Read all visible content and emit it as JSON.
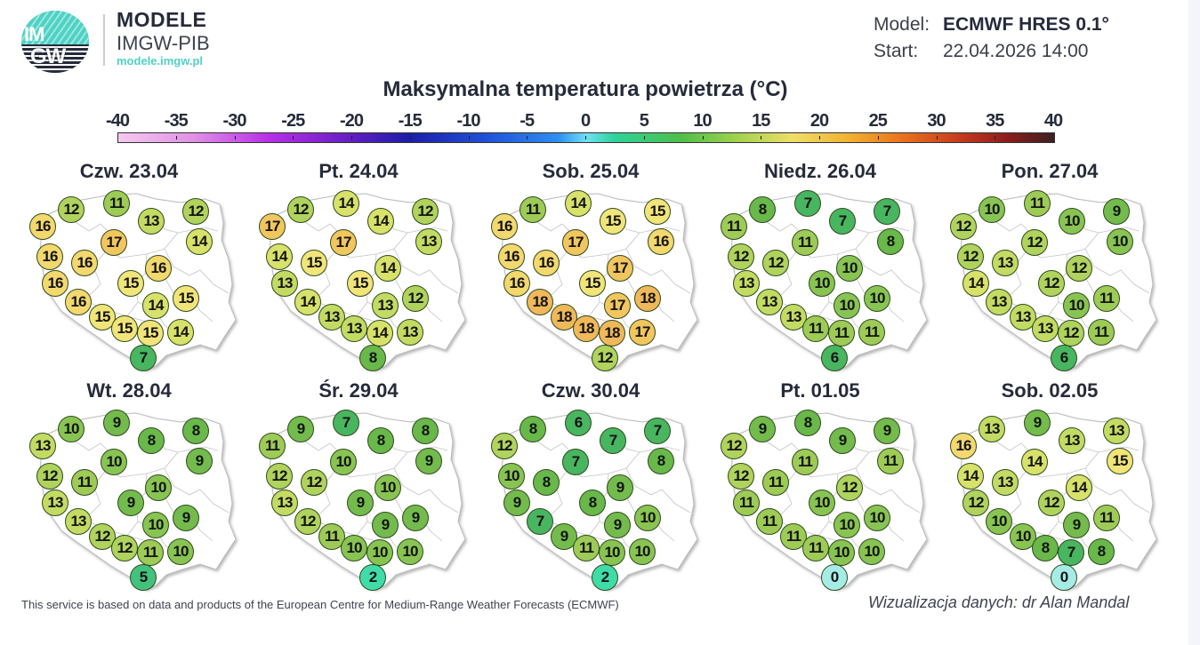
{
  "header": {
    "logo": {
      "line1": "IM",
      "line2": "GW"
    },
    "brand_title": "MODELE",
    "brand_subtitle": "IMGW-PIB",
    "brand_url": "modele.imgw.pl",
    "model_label": "Model:",
    "model_value": "ECMWF HRES 0.1°",
    "start_label": "Start:",
    "start_value": "22.04.2026 14:00"
  },
  "colors": {
    "brand_teal": "#4fd1c5",
    "brand_dark": "#252b3a"
  },
  "footer": {
    "source": "This service is based on data and products of the European Centre for Medium-Range Weather Forecasts (ECMWF)",
    "credit": "Wizualizacja danych: dr Alan Mandal"
  },
  "chart_data": {
    "type": "heatmap",
    "title": "Maksymalna temperatura powietrza (°C)",
    "colorbar": {
      "ticks": [
        -40,
        -35,
        -30,
        -25,
        -20,
        -15,
        -10,
        -5,
        0,
        5,
        10,
        15,
        20,
        25,
        30,
        35,
        40
      ],
      "range": [
        -40,
        40
      ],
      "unit": "°C"
    },
    "stations_order": [
      "W1",
      "NW",
      "N",
      "NE-mid",
      "NE",
      "C-N",
      "NE2",
      "W2",
      "W-C",
      "C",
      "W3",
      "C2",
      "SE-mid",
      "E",
      "SW1",
      "SW2",
      "S1",
      "S2",
      "SE",
      "Tatry"
    ],
    "panels": [
      {
        "date": "Czw. 23.04",
        "values": [
          16,
          12,
          11,
          13,
          12,
          17,
          14,
          16,
          16,
          16,
          16,
          15,
          14,
          15,
          16,
          15,
          15,
          15,
          14,
          7
        ]
      },
      {
        "date": "Pt. 24.04",
        "values": [
          17,
          12,
          14,
          14,
          12,
          17,
          13,
          14,
          15,
          14,
          13,
          15,
          13,
          12,
          14,
          13,
          13,
          14,
          13,
          8
        ]
      },
      {
        "date": "Sob. 25.04",
        "values": [
          16,
          11,
          14,
          15,
          15,
          17,
          16,
          16,
          16,
          17,
          16,
          15,
          17,
          18,
          18,
          18,
          18,
          18,
          17,
          12
        ]
      },
      {
        "date": "Niedz. 26.04",
        "values": [
          11,
          8,
          7,
          7,
          7,
          11,
          8,
          12,
          12,
          10,
          13,
          10,
          10,
          10,
          13,
          13,
          11,
          11,
          11,
          6
        ]
      },
      {
        "date": "Pon. 27.04",
        "values": [
          12,
          10,
          11,
          10,
          9,
          12,
          10,
          12,
          13,
          12,
          14,
          12,
          10,
          11,
          13,
          13,
          13,
          12,
          11,
          6
        ]
      },
      {
        "date": "Wt. 28.04",
        "values": [
          13,
          10,
          9,
          8,
          8,
          10,
          9,
          12,
          11,
          10,
          13,
          9,
          10,
          9,
          13,
          12,
          12,
          11,
          10,
          5
        ]
      },
      {
        "date": "Śr. 29.04",
        "values": [
          11,
          9,
          7,
          8,
          8,
          10,
          9,
          12,
          12,
          10,
          13,
          9,
          9,
          9,
          12,
          11,
          10,
          10,
          10,
          2
        ]
      },
      {
        "date": "Czw. 30.04",
        "values": [
          12,
          8,
          6,
          7,
          7,
          7,
          8,
          10,
          8,
          9,
          9,
          8,
          9,
          10,
          7,
          9,
          11,
          10,
          10,
          2
        ]
      },
      {
        "date": "Pt. 01.05",
        "values": [
          12,
          9,
          8,
          9,
          9,
          11,
          11,
          12,
          11,
          12,
          11,
          10,
          10,
          10,
          11,
          11,
          11,
          10,
          10,
          0
        ]
      },
      {
        "date": "Sob. 02.05",
        "values": [
          16,
          13,
          9,
          13,
          13,
          14,
          15,
          14,
          13,
          14,
          12,
          12,
          9,
          11,
          10,
          10,
          8,
          7,
          8,
          0
        ]
      }
    ]
  }
}
